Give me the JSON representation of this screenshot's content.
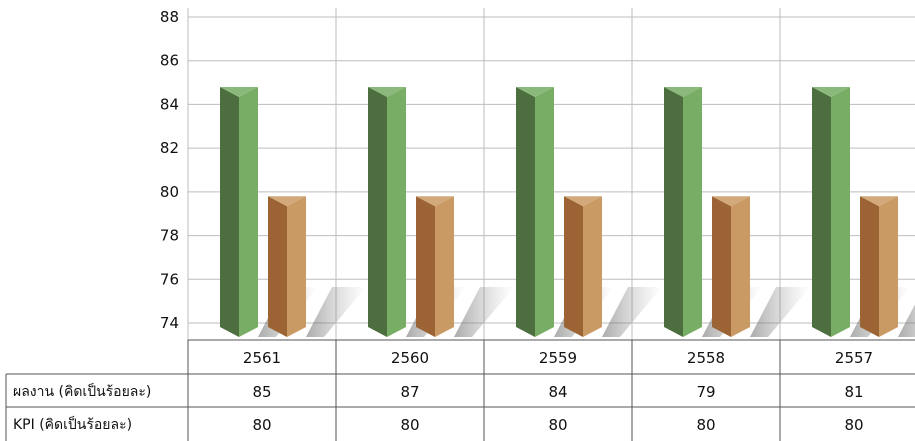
{
  "chart_data": {
    "type": "bar",
    "style": "3d-prism",
    "categories": [
      "2561",
      "2560",
      "2559",
      "2558",
      "2557"
    ],
    "ylim": [
      74,
      88
    ],
    "yticks": [
      74,
      76,
      78,
      80,
      82,
      84,
      86,
      88
    ],
    "grid": true,
    "series": [
      {
        "name": "ผลงาน (คิดเป็นร้อยละ)",
        "table_values": [
          "85",
          "87",
          "84",
          "79",
          "81"
        ],
        "bar_height": 84.8,
        "color_light": "#77ad64",
        "color_dark": "#4d6f3f"
      },
      {
        "name": "KPI (คิดเป็นร้อยละ)",
        "table_values": [
          "80",
          "80",
          "80",
          "80",
          "80"
        ],
        "bar_height": 79.8,
        "color_light": "#c99a63",
        "color_dark": "#9c6434"
      }
    ]
  }
}
